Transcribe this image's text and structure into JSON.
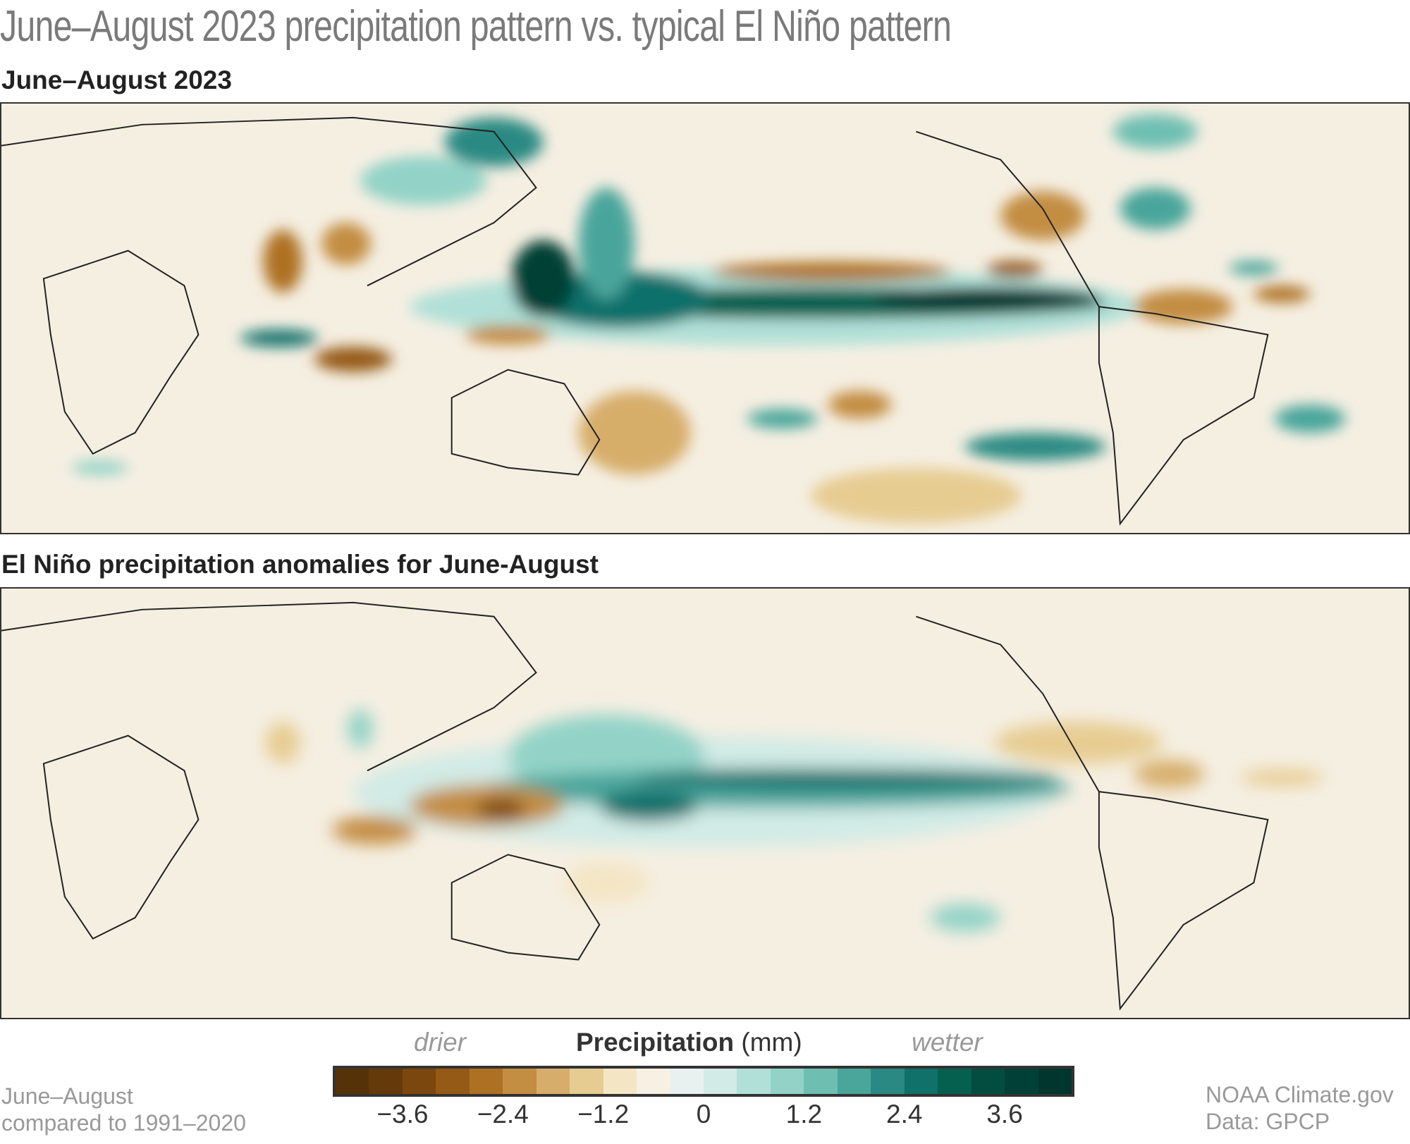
{
  "title": "June–August 2023 precipitation pattern vs. typical El Niño pattern",
  "panels": [
    {
      "subtitle": "June–August 2023"
    },
    {
      "subtitle": "El Niño precipitation anomalies for June-August"
    }
  ],
  "legend": {
    "drier": "drier",
    "title": "Precipitation",
    "unit": "(mm)",
    "wetter": "wetter",
    "ticks": [
      "−3.6",
      "−2.4",
      "−1.2",
      "0",
      "1.2",
      "2.4",
      "3.6"
    ],
    "tick_values": [
      -3.6,
      -2.4,
      -1.2,
      0,
      1.2,
      2.4,
      3.6
    ],
    "range": [
      -4.4,
      4.4
    ],
    "colors": [
      "#553207",
      "#643a0b",
      "#7c470e",
      "#955a15",
      "#ae7124",
      "#c38d42",
      "#d7ad6b",
      "#e7cc92",
      "#f4e6c5",
      "#f6f1e3",
      "#e8f1ef",
      "#d2ebe6",
      "#b1e0d8",
      "#93d3c7",
      "#6ebfb2",
      "#4aa59b",
      "#2a8a83",
      "#10706a",
      "#05604f",
      "#024d40",
      "#014036",
      "#00362e"
    ]
  },
  "footer": {
    "left_line1": "June–August",
    "left_line2": "compared to 1991–2020",
    "right_line1": "NOAA Climate.gov",
    "right_line2": "Data: GPCP"
  }
}
